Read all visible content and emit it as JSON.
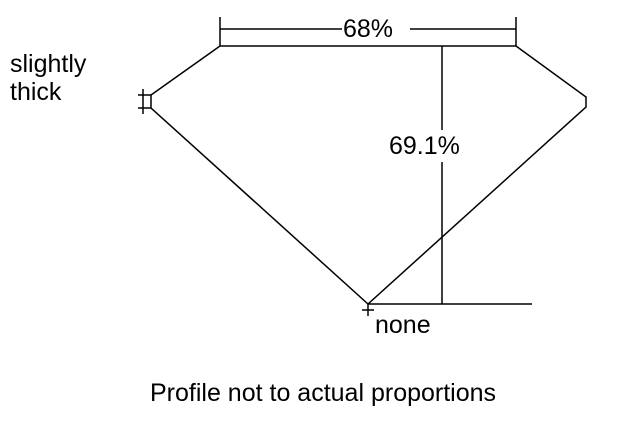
{
  "girdle_label_line1": "slightly",
  "girdle_label_line2": "thick",
  "table_percent": "68%",
  "depth_percent": "69.1%",
  "culet_label": "none",
  "caption": "Profile not to actual proportions",
  "line_color": "#000000"
}
